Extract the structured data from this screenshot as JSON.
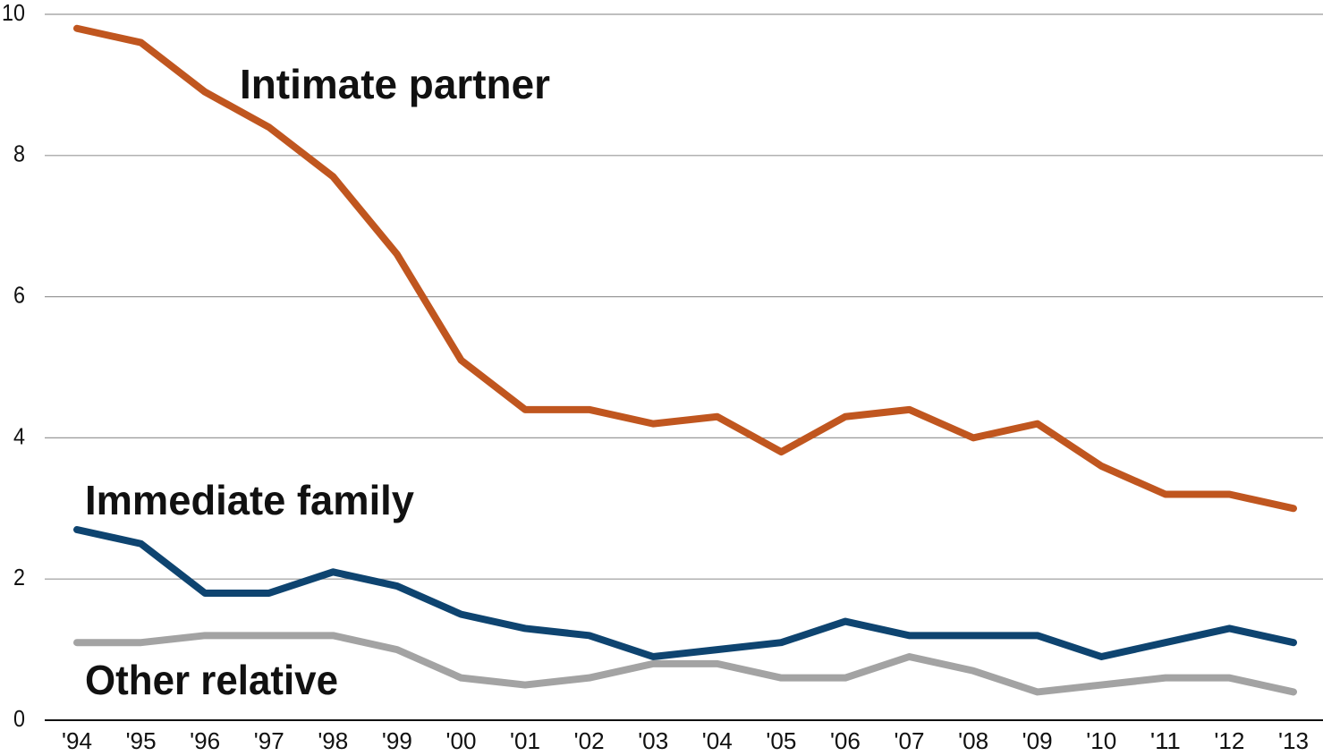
{
  "chart_data": {
    "type": "line",
    "categories": [
      "'94",
      "'95",
      "'96",
      "'97",
      "'98",
      "'99",
      "'00",
      "'01",
      "'02",
      "'03",
      "'04",
      "'05",
      "'06",
      "'07",
      "'08",
      "'09",
      "'10",
      "'11",
      "'12",
      "'13"
    ],
    "series": [
      {
        "name": "Intimate partner",
        "color": "#c0561f",
        "values": [
          9.8,
          9.6,
          8.9,
          8.4,
          7.7,
          6.6,
          5.1,
          4.4,
          4.4,
          4.2,
          4.3,
          3.8,
          4.3,
          4.4,
          4.0,
          4.2,
          3.6,
          3.2,
          3.2,
          3.0
        ]
      },
      {
        "name": "Immediate family",
        "color": "#0e4470",
        "values": [
          2.7,
          2.5,
          1.8,
          1.8,
          2.1,
          1.9,
          1.5,
          1.3,
          1.2,
          0.9,
          1.0,
          1.1,
          1.4,
          1.2,
          1.2,
          1.2,
          0.9,
          1.1,
          1.3,
          1.1
        ]
      },
      {
        "name": "Other relative",
        "color": "#a3a3a3",
        "values": [
          1.1,
          1.1,
          1.2,
          1.2,
          1.2,
          1.0,
          0.6,
          0.5,
          0.6,
          0.8,
          0.8,
          0.6,
          0.6,
          0.9,
          0.7,
          0.4,
          0.5,
          0.6,
          0.6,
          0.4
        ]
      }
    ],
    "ylim": [
      0,
      10
    ],
    "yticks": [
      0,
      2,
      4,
      6,
      8,
      10
    ],
    "grid": true
  }
}
